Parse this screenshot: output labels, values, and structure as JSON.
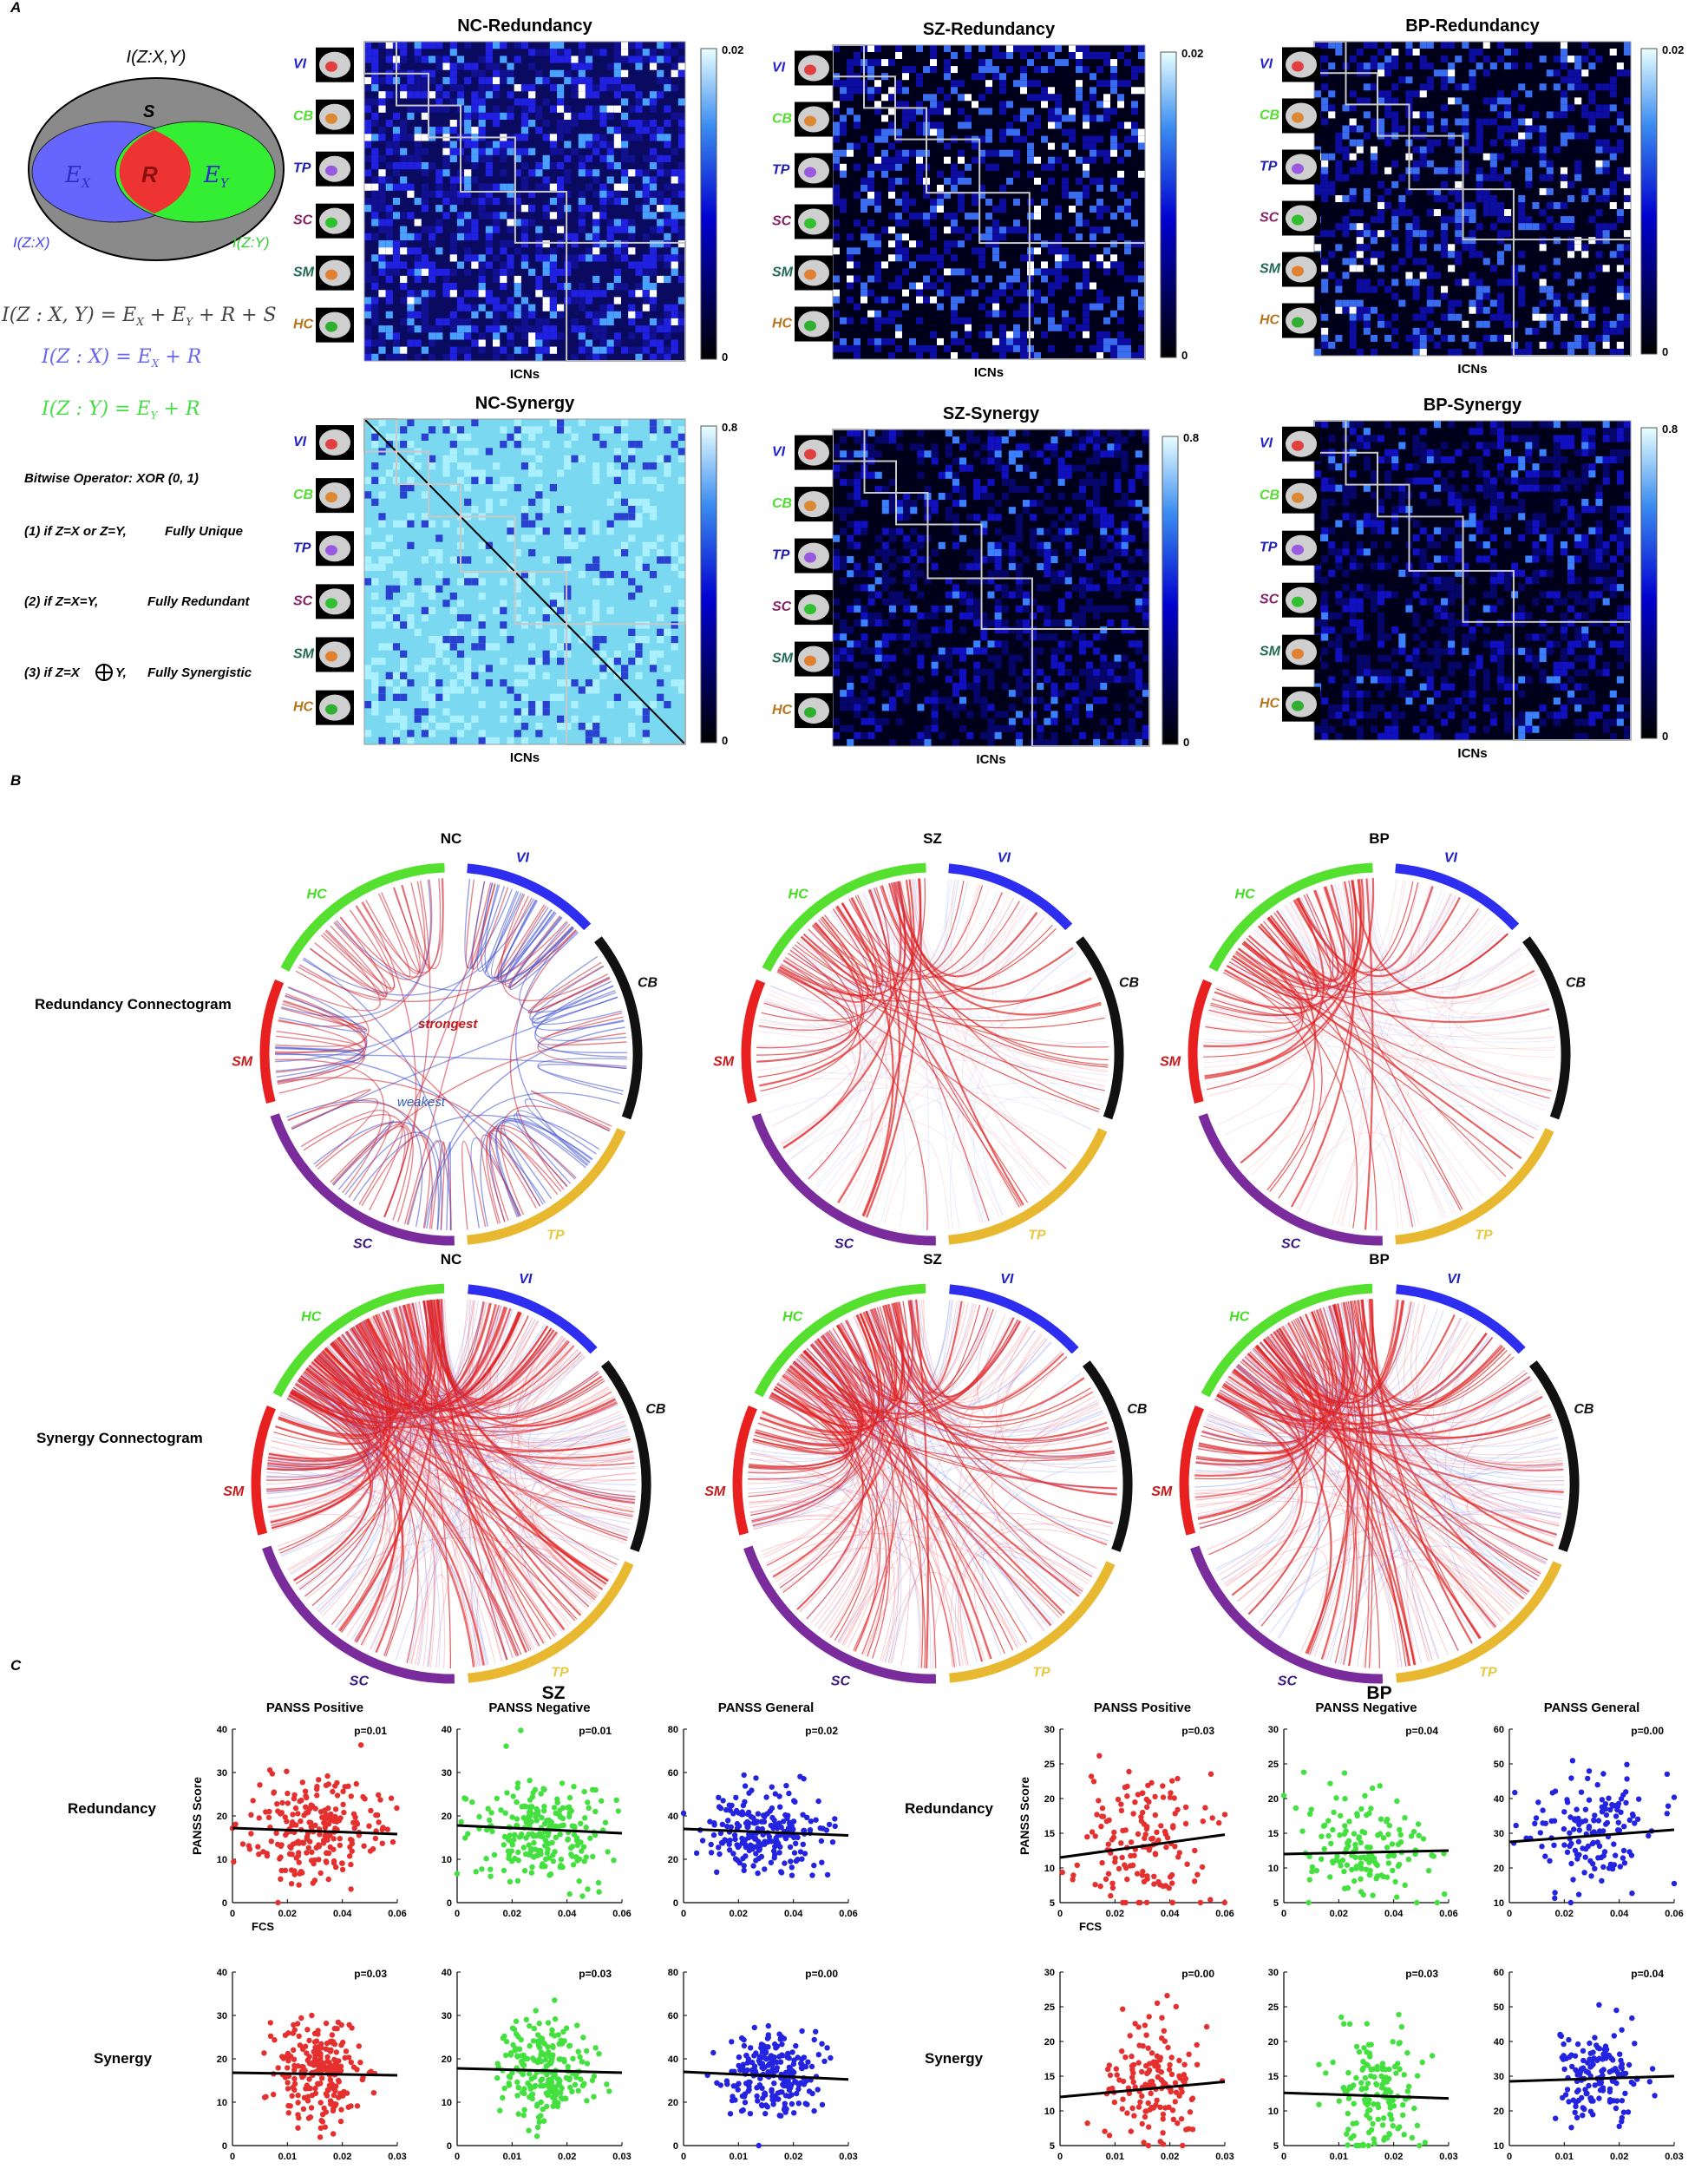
{
  "panel_labels": {
    "a": "A",
    "b": "B",
    "c": "C"
  },
  "colors": {
    "VI": "#2323c8",
    "CB": "#55dd33",
    "TP": "#2020b0",
    "SC": "#882266",
    "SM": "#226a55",
    "HC": "#b8751a",
    "ring_VI": "#2e2ef0",
    "ring_CB": "#111111",
    "ring_TP": "#e8b830",
    "ring_SC": "#7b2c9c",
    "ring_SM": "#e82020",
    "ring_HC": "#55e030",
    "red": "#e53030",
    "green": "#44e040",
    "blue": "#2424e0"
  },
  "venn": {
    "title": "I(Z:X,Y)",
    "s": "S",
    "ex": "E",
    "ex_sub": "X",
    "r": "R",
    "ey": "E",
    "ey_sub": "Y",
    "left_label": "I(Z:X)",
    "right_label": "I(Z:Y)",
    "eq1": "I(Z : X, Y) = E",
    "eq1_rest": " + E",
    "eq1_tail": " + R + S",
    "eq2": "I(Z : X) = E",
    "eq2_tail": " + R",
    "eq3": "I(Z : Y) = E",
    "eq3_tail": " + R",
    "bitwise": "Bitwise Operator: XOR (0, 1)",
    "rule1_a": "(1) if Z=X or Z=Y,",
    "rule1_b": "Fully Unique",
    "rule2_a": "(2) if Z=X=Y,",
    "rule2_b": "Fully Redundant",
    "rule3_a": "(3) if Z=X",
    "rule3_b": "Y,",
    "rule3_c": "Fully Synergistic"
  },
  "networks": [
    "VI",
    "CB",
    "TP",
    "SC",
    "SM",
    "HC"
  ],
  "matrices": [
    {
      "title": "NC-Redundancy",
      "cmax": "0.02",
      "cmin": "0",
      "xlabel": "ICNs"
    },
    {
      "title": "SZ-Redundancy",
      "cmax": "0.02",
      "cmin": "0",
      "xlabel": "ICNs"
    },
    {
      "title": "BP-Redundancy",
      "cmax": "0.02",
      "cmin": "0",
      "xlabel": "ICNs"
    },
    {
      "title": "NC-Synergy",
      "cmax": "0.8",
      "cmin": "0",
      "xlabel": "ICNs"
    },
    {
      "title": "SZ-Synergy",
      "cmax": "0.8",
      "cmin": "0",
      "xlabel": "ICNs"
    },
    {
      "title": "BP-Synergy",
      "cmax": "0.8",
      "cmin": "0",
      "xlabel": "ICNs"
    }
  ],
  "connectograms": {
    "row_labels": [
      "Redundancy Connectogram",
      "Synergy Connectogram"
    ],
    "titles": [
      "NC",
      "SZ",
      "BP"
    ],
    "strongest": "strongest",
    "weakest": "weakest"
  },
  "section_c": {
    "group_titles": [
      "SZ",
      "BP"
    ],
    "row_labels": [
      "Redundancy",
      "Synergy"
    ],
    "col_titles": [
      "PANSS Positive",
      "PANSS Negative",
      "PANSS General"
    ],
    "ylabel": "PANSS Score",
    "xlabel": "FCS"
  },
  "chart_data": [
    {
      "type": "scatter",
      "group": "SZ",
      "measure": "Redundancy",
      "title": "PANSS Positive",
      "annotation": "p=0.01",
      "ylabel": "PANSS Score",
      "xlabel": "FCS",
      "xlim": [
        0,
        0.06
      ],
      "ylim": [
        0,
        40
      ],
      "xticks": [
        "0",
        "0.02",
        "0.04",
        "0.06"
      ],
      "yticks": [
        "0",
        "10",
        "20",
        "30",
        "40"
      ],
      "fit": [
        17.2,
        15.8
      ],
      "color": "red",
      "cx": 0.03,
      "sx": 0.012,
      "cy": 16.5,
      "sy": 6,
      "n": 230
    },
    {
      "type": "scatter",
      "group": "SZ",
      "measure": "Redundancy",
      "title": "PANSS Negative",
      "annotation": "p=0.01",
      "xlim": [
        0,
        0.06
      ],
      "ylim": [
        0,
        40
      ],
      "xticks": [
        "0",
        "0.02",
        "0.04",
        "0.06"
      ],
      "yticks": [
        "0",
        "10",
        "20",
        "30",
        "40"
      ],
      "fit": [
        17.8,
        16.0
      ],
      "color": "green",
      "cx": 0.03,
      "sx": 0.012,
      "cy": 17,
      "sy": 6,
      "n": 230
    },
    {
      "type": "scatter",
      "group": "SZ",
      "measure": "Redundancy",
      "title": "PANSS General",
      "annotation": "p=0.02",
      "xlim": [
        0,
        0.06
      ],
      "ylim": [
        0,
        80
      ],
      "xticks": [
        "0",
        "0.02",
        "0.04",
        "0.06"
      ],
      "yticks": [
        "0",
        "20",
        "40",
        "60",
        "80"
      ],
      "fit": [
        34.0,
        31.0
      ],
      "color": "blue",
      "cx": 0.03,
      "sx": 0.011,
      "cy": 33,
      "sy": 9,
      "n": 230
    },
    {
      "type": "scatter",
      "group": "BP",
      "measure": "Redundancy",
      "title": "PANSS Positive",
      "annotation": "p=0.03",
      "ylabel": "PANSS Score",
      "xlabel": "FCS",
      "xlim": [
        0,
        0.06
      ],
      "ylim": [
        5,
        30
      ],
      "xticks": [
        "0",
        "0.02",
        "0.04",
        "0.06"
      ],
      "yticks": [
        "5",
        "10",
        "15",
        "20",
        "25",
        "30"
      ],
      "fit": [
        11.5,
        14.8
      ],
      "color": "red",
      "cx": 0.03,
      "sx": 0.011,
      "cy": 14,
      "sy": 5,
      "n": 150
    },
    {
      "type": "scatter",
      "group": "BP",
      "measure": "Redundancy",
      "title": "PANSS Negative",
      "annotation": "p=0.04",
      "xlim": [
        0,
        0.06
      ],
      "ylim": [
        5,
        30
      ],
      "xticks": [
        "0",
        "0.02",
        "0.04",
        "0.06"
      ],
      "yticks": [
        "5",
        "10",
        "15",
        "20",
        "25",
        "30"
      ],
      "fit": [
        12.0,
        12.5
      ],
      "color": "green",
      "cx": 0.03,
      "sx": 0.011,
      "cy": 12.5,
      "sy": 4,
      "n": 150
    },
    {
      "type": "scatter",
      "group": "BP",
      "measure": "Redundancy",
      "title": "PANSS General",
      "annotation": "p=0.00",
      "xlim": [
        0,
        0.06
      ],
      "ylim": [
        10,
        60
      ],
      "xticks": [
        "0",
        "0.02",
        "0.04",
        "0.06"
      ],
      "yticks": [
        "10",
        "20",
        "30",
        "40",
        "50",
        "60"
      ],
      "fit": [
        27.5,
        31.0
      ],
      "color": "blue",
      "cx": 0.03,
      "sx": 0.011,
      "cy": 30,
      "sy": 8,
      "n": 150
    },
    {
      "type": "scatter",
      "group": "SZ",
      "measure": "Synergy",
      "title": "PANSS Positive",
      "annotation": "p=0.03",
      "xlim": [
        0,
        0.03
      ],
      "ylim": [
        0,
        40
      ],
      "xticks": [
        "0",
        "0.01",
        "0.02",
        "0.03"
      ],
      "yticks": [
        "0",
        "10",
        "20",
        "30",
        "40"
      ],
      "fit": [
        16.8,
        16.2
      ],
      "color": "red",
      "cx": 0.016,
      "sx": 0.004,
      "cy": 16.5,
      "sy": 6,
      "n": 230
    },
    {
      "type": "scatter",
      "group": "SZ",
      "measure": "Synergy",
      "title": "PANSS Negative",
      "annotation": "p=0.03",
      "xlim": [
        0,
        0.03
      ],
      "ylim": [
        0,
        40
      ],
      "xticks": [
        "0",
        "0.01",
        "0.02",
        "0.03"
      ],
      "yticks": [
        "0",
        "10",
        "20",
        "30",
        "40"
      ],
      "fit": [
        17.8,
        16.8
      ],
      "color": "green",
      "cx": 0.016,
      "sx": 0.004,
      "cy": 17.5,
      "sy": 6,
      "n": 230
    },
    {
      "type": "scatter",
      "group": "SZ",
      "measure": "Synergy",
      "title": "PANSS General",
      "annotation": "p=0.00",
      "xlim": [
        0,
        0.03
      ],
      "ylim": [
        0,
        80
      ],
      "xticks": [
        "0",
        "0.01",
        "0.02",
        "0.03"
      ],
      "yticks": [
        "0",
        "20",
        "40",
        "60",
        "80"
      ],
      "fit": [
        34.0,
        30.5
      ],
      "color": "blue",
      "cx": 0.016,
      "sx": 0.004,
      "cy": 33,
      "sy": 9,
      "n": 230
    },
    {
      "type": "scatter",
      "group": "BP",
      "measure": "Synergy",
      "title": "PANSS Positive",
      "annotation": "p=0.00",
      "xlim": [
        0,
        0.03
      ],
      "ylim": [
        5,
        30
      ],
      "xticks": [
        "0",
        "0.01",
        "0.02",
        "0.03"
      ],
      "yticks": [
        "5",
        "10",
        "15",
        "20",
        "25",
        "30"
      ],
      "fit": [
        12.0,
        14.2
      ],
      "color": "red",
      "cx": 0.017,
      "sx": 0.004,
      "cy": 14,
      "sy": 5,
      "n": 150
    },
    {
      "type": "scatter",
      "group": "BP",
      "measure": "Synergy",
      "title": "PANSS Negative",
      "annotation": "p=0.03",
      "xlim": [
        0,
        0.03
      ],
      "ylim": [
        5,
        30
      ],
      "xticks": [
        "0",
        "0.01",
        "0.02",
        "0.03"
      ],
      "yticks": [
        "5",
        "10",
        "15",
        "20",
        "25",
        "30"
      ],
      "fit": [
        12.6,
        11.8
      ],
      "color": "green",
      "cx": 0.017,
      "sx": 0.004,
      "cy": 12.5,
      "sy": 4,
      "n": 150
    },
    {
      "type": "scatter",
      "group": "BP",
      "measure": "Synergy",
      "title": "PANSS General",
      "annotation": "p=0.04",
      "xlim": [
        0,
        0.03
      ],
      "ylim": [
        10,
        60
      ],
      "xticks": [
        "0",
        "0.01",
        "0.02",
        "0.03"
      ],
      "yticks": [
        "10",
        "20",
        "30",
        "40",
        "50",
        "60"
      ],
      "fit": [
        28.5,
        30.0
      ],
      "color": "blue",
      "cx": 0.016,
      "sx": 0.004,
      "cy": 30,
      "sy": 8,
      "n": 150
    }
  ]
}
